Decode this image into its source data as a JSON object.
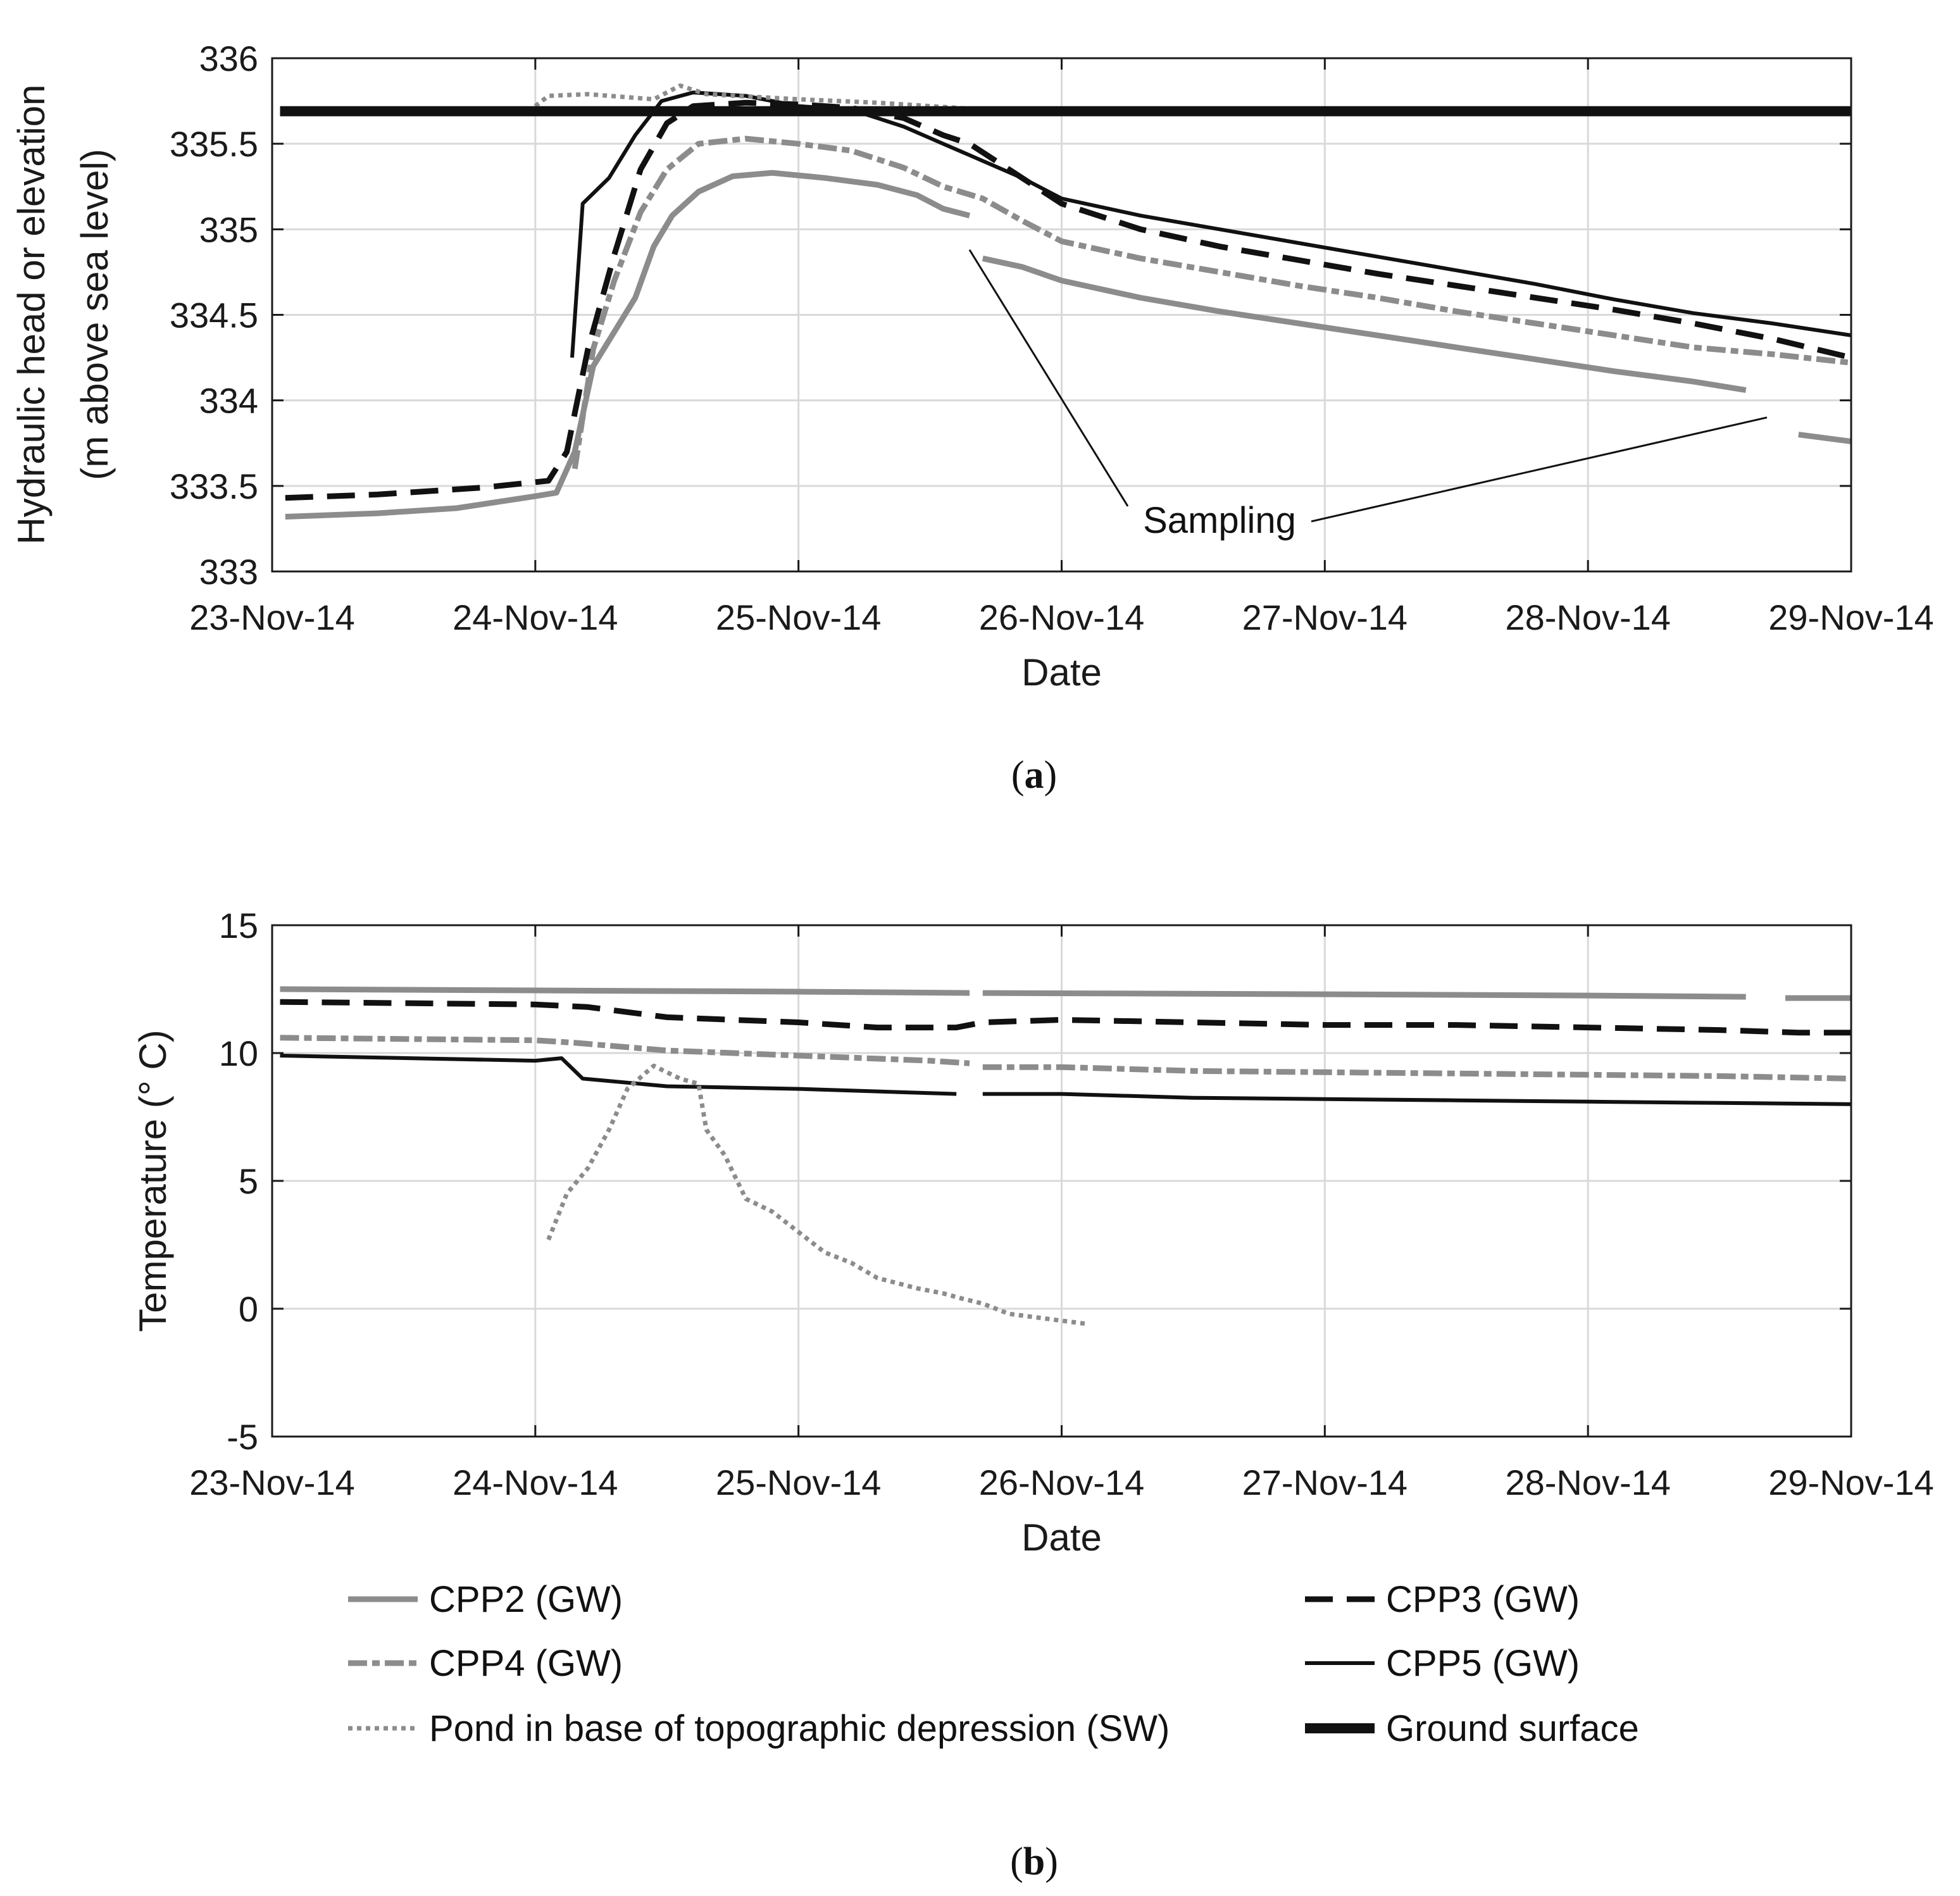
{
  "panel_labels": {
    "a": "a",
    "b": "b"
  },
  "colors": {
    "black": "#111111",
    "gray": "#8c8c8c",
    "grid": "#d9d9d9"
  },
  "legend": [
    {
      "key": "cpp2",
      "label": "CPP2 (GW)"
    },
    {
      "key": "cpp3",
      "label": "CPP3 (GW)"
    },
    {
      "key": "cpp4",
      "label": "CPP4 (GW)"
    },
    {
      "key": "cpp5",
      "label": "CPP5 (GW)"
    },
    {
      "key": "pond",
      "label": "Pond in base of topographic depression (SW)"
    },
    {
      "key": "ground",
      "label": "Ground surface"
    }
  ],
  "chart_data": [
    {
      "id": "a",
      "type": "line",
      "title": "",
      "xlabel": "Date",
      "ylabel": [
        "Hydraulic head or elevation",
        "(m above sea level)"
      ],
      "x_unit": "days since 23-Nov-14",
      "xlim": [
        0,
        6
      ],
      "ylim": [
        333,
        336
      ],
      "xticks": [
        0,
        1,
        2,
        3,
        4,
        5,
        6
      ],
      "xticklabels": [
        "23-Nov-14",
        "24-Nov-14",
        "25-Nov-14",
        "26-Nov-14",
        "27-Nov-14",
        "28-Nov-14",
        "29-Nov-14"
      ],
      "yticks": [
        333,
        333.5,
        334,
        334.5,
        335,
        335.5,
        336
      ],
      "yticklabels": [
        "333",
        "333.5",
        "334",
        "334.5",
        "335",
        "335.5",
        "336"
      ],
      "grid": true,
      "annotations": [
        {
          "text": "Sampling",
          "x": 3.6,
          "y": 333.3,
          "points_to": [
            [
              2.65,
              334.88
            ],
            [
              5.68,
              333.9
            ]
          ]
        }
      ],
      "series": [
        {
          "key": "cpp2",
          "name": "CPP2 (GW)",
          "segments": [
            [
              [
                0.05,
                333.32
              ],
              [
                0.4,
                333.34
              ],
              [
                0.7,
                333.37
              ],
              [
                1.0,
                333.44
              ],
              [
                1.08,
                333.46
              ],
              [
                1.15,
                333.7
              ],
              [
                1.22,
                334.2
              ],
              [
                1.3,
                334.4
              ],
              [
                1.38,
                334.6
              ],
              [
                1.45,
                334.9
              ],
              [
                1.52,
                335.08
              ],
              [
                1.62,
                335.22
              ],
              [
                1.75,
                335.31
              ],
              [
                1.9,
                335.33
              ],
              [
                2.1,
                335.3
              ],
              [
                2.3,
                335.26
              ],
              [
                2.45,
                335.2
              ],
              [
                2.55,
                335.12
              ],
              [
                2.65,
                335.08
              ]
            ],
            [
              [
                2.7,
                334.83
              ],
              [
                2.85,
                334.78
              ],
              [
                3.0,
                334.7
              ],
              [
                3.3,
                334.6
              ],
              [
                3.6,
                334.52
              ],
              [
                3.9,
                334.45
              ],
              [
                4.2,
                334.38
              ],
              [
                4.5,
                334.31
              ],
              [
                4.8,
                334.24
              ],
              [
                5.1,
                334.17
              ],
              [
                5.4,
                334.11
              ],
              [
                5.6,
                334.06
              ]
            ],
            [
              [
                5.8,
                333.8
              ],
              [
                6.0,
                333.76
              ]
            ]
          ]
        },
        {
          "key": "cpp3",
          "name": "CPP3 (GW)",
          "segments": [
            [
              [
                0.05,
                333.43
              ],
              [
                0.4,
                333.45
              ],
              [
                0.8,
                333.49
              ],
              [
                1.05,
                333.53
              ],
              [
                1.12,
                333.7
              ],
              [
                1.2,
                334.3
              ],
              [
                1.3,
                334.85
              ],
              [
                1.4,
                335.35
              ],
              [
                1.5,
                335.62
              ],
              [
                1.6,
                335.72
              ],
              [
                1.8,
                335.74
              ],
              [
                2.0,
                335.73
              ],
              [
                2.2,
                335.71
              ],
              [
                2.4,
                335.65
              ],
              [
                2.55,
                335.55
              ],
              [
                2.65,
                335.5
              ],
              [
                2.8,
                335.35
              ],
              [
                3.0,
                335.15
              ],
              [
                3.3,
                335.0
              ],
              [
                3.6,
                334.9
              ],
              [
                3.9,
                334.82
              ],
              [
                4.2,
                334.74
              ],
              [
                4.5,
                334.67
              ],
              [
                4.8,
                334.6
              ],
              [
                5.1,
                334.53
              ],
              [
                5.4,
                334.45
              ],
              [
                5.7,
                334.36
              ],
              [
                6.0,
                334.25
              ]
            ]
          ]
        },
        {
          "key": "cpp4",
          "name": "CPP4 (GW)",
          "segments": [
            [
              [
                1.15,
                333.6
              ],
              [
                1.22,
                334.3
              ],
              [
                1.3,
                334.7
              ],
              [
                1.4,
                335.1
              ],
              [
                1.5,
                335.35
              ],
              [
                1.62,
                335.5
              ],
              [
                1.8,
                335.53
              ],
              [
                2.0,
                335.5
              ],
              [
                2.2,
                335.46
              ],
              [
                2.4,
                335.36
              ],
              [
                2.55,
                335.25
              ],
              [
                2.7,
                335.18
              ],
              [
                2.85,
                335.05
              ],
              [
                3.0,
                334.93
              ],
              [
                3.3,
                334.83
              ],
              [
                3.6,
                334.75
              ],
              [
                3.9,
                334.67
              ],
              [
                4.2,
                334.6
              ],
              [
                4.5,
                334.52
              ],
              [
                4.8,
                334.45
              ],
              [
                5.1,
                334.38
              ],
              [
                5.4,
                334.31
              ],
              [
                5.7,
                334.27
              ],
              [
                6.0,
                334.22
              ]
            ]
          ]
        },
        {
          "key": "cpp5",
          "name": "CPP5 (GW)",
          "segments": [
            [
              [
                1.14,
                334.25
              ],
              [
                1.18,
                335.15
              ],
              [
                1.28,
                335.3
              ],
              [
                1.38,
                335.55
              ],
              [
                1.48,
                335.75
              ],
              [
                1.6,
                335.8
              ],
              [
                1.8,
                335.78
              ],
              [
                2.0,
                335.72
              ],
              [
                2.2,
                335.7
              ],
              [
                2.4,
                335.6
              ],
              [
                2.55,
                335.5
              ],
              [
                2.7,
                335.4
              ],
              [
                2.85,
                335.3
              ],
              [
                3.0,
                335.18
              ],
              [
                3.3,
                335.08
              ],
              [
                3.6,
                335.0
              ],
              [
                3.9,
                334.92
              ],
              [
                4.2,
                334.84
              ],
              [
                4.5,
                334.76
              ],
              [
                4.8,
                334.68
              ],
              [
                5.1,
                334.59
              ],
              [
                5.4,
                334.51
              ],
              [
                5.7,
                334.45
              ],
              [
                6.0,
                334.38
              ]
            ]
          ]
        },
        {
          "key": "pond",
          "name": "Pond in base of topographic depression (SW)",
          "segments": [
            [
              [
                1.0,
                335.72
              ],
              [
                1.05,
                335.78
              ],
              [
                1.2,
                335.79
              ],
              [
                1.45,
                335.76
              ],
              [
                1.55,
                335.84
              ],
              [
                1.65,
                335.79
              ],
              [
                2.0,
                335.76
              ],
              [
                2.3,
                335.74
              ],
              [
                2.7,
                335.7
              ]
            ]
          ]
        },
        {
          "key": "ground",
          "name": "Ground surface",
          "segments": [
            [
              [
                0.03,
                335.69
              ],
              [
                6.0,
                335.69
              ]
            ]
          ]
        }
      ]
    },
    {
      "id": "b",
      "type": "line",
      "title": "",
      "xlabel": "Date",
      "ylabel": [
        "Temperature (° C)"
      ],
      "x_unit": "days since 23-Nov-14",
      "xlim": [
        0,
        6
      ],
      "ylim": [
        -5,
        15
      ],
      "xticks": [
        0,
        1,
        2,
        3,
        4,
        5,
        6
      ],
      "xticklabels": [
        "23-Nov-14",
        "24-Nov-14",
        "25-Nov-14",
        "26-Nov-14",
        "27-Nov-14",
        "28-Nov-14",
        "29-Nov-14"
      ],
      "yticks": [
        -5,
        0,
        5,
        10,
        15
      ],
      "yticklabels": [
        "-5",
        "0",
        "5",
        "10",
        "15"
      ],
      "grid": true,
      "annotations": [],
      "series": [
        {
          "key": "cpp2",
          "name": "CPP2 (GW)",
          "segments": [
            [
              [
                0.03,
                12.5
              ],
              [
                1.0,
                12.45
              ],
              [
                2.0,
                12.4
              ],
              [
                2.65,
                12.35
              ]
            ],
            [
              [
                2.7,
                12.35
              ],
              [
                4.0,
                12.3
              ],
              [
                5.0,
                12.25
              ],
              [
                5.6,
                12.2
              ]
            ],
            [
              [
                5.75,
                12.15
              ],
              [
                6.0,
                12.15
              ]
            ]
          ]
        },
        {
          "key": "cpp3",
          "name": "CPP3 (GW)",
          "segments": [
            [
              [
                0.03,
                12.0
              ],
              [
                1.0,
                11.9
              ],
              [
                1.2,
                11.8
              ],
              [
                1.5,
                11.4
              ],
              [
                2.0,
                11.2
              ],
              [
                2.3,
                11.0
              ],
              [
                2.6,
                11.0
              ],
              [
                2.7,
                11.2
              ],
              [
                3.0,
                11.3
              ],
              [
                3.5,
                11.2
              ],
              [
                4.0,
                11.1
              ],
              [
                4.5,
                11.1
              ],
              [
                5.0,
                11.0
              ],
              [
                5.5,
                10.9
              ],
              [
                5.8,
                10.8
              ],
              [
                6.0,
                10.8
              ]
            ]
          ]
        },
        {
          "key": "cpp4",
          "name": "CPP4 (GW)",
          "segments": [
            [
              [
                0.03,
                10.6
              ],
              [
                1.0,
                10.5
              ],
              [
                1.15,
                10.4
              ],
              [
                1.5,
                10.1
              ],
              [
                2.0,
                9.9
              ],
              [
                2.5,
                9.7
              ],
              [
                2.65,
                9.6
              ]
            ],
            [
              [
                2.7,
                9.45
              ],
              [
                3.0,
                9.45
              ],
              [
                3.5,
                9.3
              ],
              [
                4.0,
                9.25
              ],
              [
                4.5,
                9.2
              ],
              [
                5.0,
                9.15
              ],
              [
                5.5,
                9.1
              ],
              [
                6.0,
                9.0
              ]
            ]
          ]
        },
        {
          "key": "cpp5",
          "name": "CPP5 (GW)",
          "segments": [
            [
              [
                0.03,
                9.9
              ],
              [
                1.0,
                9.7
              ],
              [
                1.1,
                9.8
              ],
              [
                1.18,
                9.0
              ],
              [
                1.5,
                8.7
              ],
              [
                2.0,
                8.6
              ],
              [
                2.3,
                8.5
              ],
              [
                2.6,
                8.4
              ]
            ],
            [
              [
                2.7,
                8.4
              ],
              [
                3.0,
                8.4
              ],
              [
                3.5,
                8.25
              ],
              [
                4.0,
                8.2
              ],
              [
                4.5,
                8.15
              ],
              [
                5.0,
                8.1
              ],
              [
                5.5,
                8.05
              ],
              [
                6.0,
                8.0
              ]
            ]
          ]
        },
        {
          "key": "pond",
          "name": "Pond in base of topographic depression (SW)",
          "segments": [
            [
              [
                1.05,
                2.7
              ],
              [
                1.12,
                4.5
              ],
              [
                1.2,
                5.5
              ],
              [
                1.28,
                7.0
              ],
              [
                1.35,
                8.6
              ],
              [
                1.45,
                9.5
              ],
              [
                1.55,
                9.0
              ],
              [
                1.62,
                8.8
              ],
              [
                1.65,
                7.0
              ],
              [
                1.72,
                6.0
              ],
              [
                1.8,
                4.3
              ],
              [
                1.9,
                3.8
              ],
              [
                2.0,
                3.0
              ],
              [
                2.1,
                2.2
              ],
              [
                2.2,
                1.8
              ],
              [
                2.3,
                1.2
              ],
              [
                2.45,
                0.8
              ],
              [
                2.55,
                0.6
              ],
              [
                2.62,
                0.4
              ],
              [
                2.7,
                0.2
              ],
              [
                2.8,
                -0.2
              ],
              [
                2.95,
                -0.4
              ],
              [
                3.1,
                -0.6
              ]
            ]
          ]
        }
      ]
    }
  ]
}
